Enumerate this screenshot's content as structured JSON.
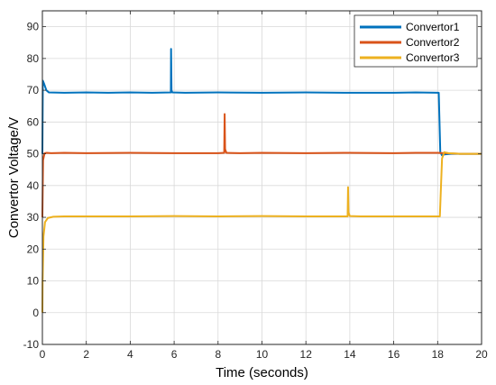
{
  "chart_data": {
    "type": "line",
    "title": "",
    "xlabel": "Time (seconds)",
    "ylabel": "Convertor Voltage/V",
    "xlim": [
      0,
      20
    ],
    "ylim": [
      -10,
      95
    ],
    "xticks": [
      0,
      2,
      4,
      6,
      8,
      10,
      12,
      14,
      16,
      18,
      20
    ],
    "yticks": [
      -10,
      0,
      10,
      20,
      30,
      40,
      50,
      60,
      70,
      80,
      90
    ],
    "grid": true,
    "legend_position": "top-right",
    "series": [
      {
        "name": "Convertor1",
        "color": "#0072BD",
        "x": [
          0,
          0.02,
          0.08,
          0.18,
          0.3,
          1,
          2,
          3,
          4,
          5,
          5.85,
          5.86,
          5.88,
          5.92,
          6.5,
          8,
          10,
          12,
          14,
          16,
          17,
          18.05,
          18.12,
          18.2,
          18.3,
          18.6,
          19,
          20
        ],
        "y": [
          50,
          73,
          72,
          70,
          69.3,
          69.2,
          69.3,
          69.2,
          69.3,
          69.2,
          69.3,
          83,
          70,
          69.3,
          69.2,
          69.3,
          69.2,
          69.3,
          69.2,
          69.2,
          69.3,
          69.2,
          50.5,
          49.5,
          49.8,
          50,
          50,
          50
        ]
      },
      {
        "name": "Convertor2",
        "color": "#D95319",
        "x": [
          0,
          0.03,
          0.1,
          0.2,
          0.4,
          1,
          2,
          4,
          6,
          8,
          8.28,
          8.3,
          8.32,
          8.38,
          9,
          10,
          12,
          14,
          16,
          17,
          18,
          18.3,
          19,
          20
        ],
        "y": [
          30,
          48,
          50.2,
          50.3,
          50.2,
          50.3,
          50.2,
          50.3,
          50.2,
          50.2,
          50.3,
          62.5,
          51.5,
          50.3,
          50.2,
          50.3,
          50.2,
          50.3,
          50.2,
          50.3,
          50.3,
          50.2,
          50,
          50
        ]
      },
      {
        "name": "Convertor3",
        "color": "#EDB120",
        "x": [
          0,
          0.01,
          0.05,
          0.12,
          0.25,
          0.5,
          1,
          2,
          4,
          6,
          8,
          10,
          12,
          13.9,
          13.92,
          13.94,
          14.0,
          14.5,
          16,
          17,
          18.1,
          18.2,
          18.3,
          18.5,
          19,
          20
        ],
        "y": [
          0,
          10,
          24,
          28.5,
          29.8,
          30.2,
          30.3,
          30.3,
          30.3,
          30.4,
          30.3,
          30.4,
          30.3,
          30.3,
          39.5,
          31.5,
          30.4,
          30.3,
          30.3,
          30.3,
          30.3,
          48.5,
          50.5,
          50.2,
          50,
          50
        ]
      }
    ]
  }
}
